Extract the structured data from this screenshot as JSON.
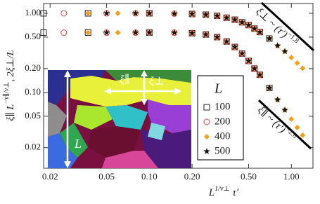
{
  "chart_data": {
    "type": "scatter",
    "x_label": {
      "main": "L",
      "sup": "1/ν⊥",
      "rest": " τ′"
    },
    "y_label": {
      "main": "ξ∥ L",
      "sup": "−ν∥/ν⊥",
      "rest": ", 2ξ⊥/L"
    },
    "log_x": true,
    "log_y": true,
    "xlim": [
      0.018,
      1.42
    ],
    "ylim": [
      0.011,
      1.33
    ],
    "xticks": [
      0.02,
      0.05,
      {
        "value": 0.1,
        "label": "0.10"
      },
      {
        "value": 0.2,
        "label": "0.20"
      },
      {
        "value": 0.5,
        "label": "0.50"
      },
      {
        "value": 1,
        "label": "1.00"
      }
    ],
    "yticks": [
      0.02,
      0.05,
      {
        "value": 0.1,
        "label": "0.10"
      },
      {
        "value": 0.2,
        "label": "0.20"
      },
      {
        "value": 0.5,
        "label": "0.50"
      },
      {
        "value": 1,
        "label": "1.00"
      }
    ],
    "legend_title": "L",
    "legend_position": "lower right",
    "series": [
      {
        "name": "100",
        "color": "#222222",
        "marker": "square",
        "x": [
          0.018,
          0.037,
          0.1,
          0.2,
          0.25,
          0.3,
          0.35,
          0.4,
          0.45,
          0.5,
          0.55,
          0.6,
          0.7
        ],
        "xi_perp": [
          1.0,
          1.0,
          1.0,
          0.98,
          0.96,
          0.93,
          0.88,
          0.83,
          0.77,
          0.71,
          0.64,
          0.58,
          0.48
        ],
        "xi_par": [
          0.57,
          0.57,
          0.57,
          0.56,
          0.54,
          0.5,
          0.44,
          0.375,
          0.31,
          0.25,
          0.2,
          0.167,
          0.114
        ]
      },
      {
        "name": "200",
        "color": "#e8453c",
        "marker": "circle",
        "x": [
          0.025,
          0.05,
          0.08,
          0.1,
          0.15,
          0.2,
          0.25,
          0.3,
          0.35,
          0.4,
          0.45,
          0.5,
          0.55,
          0.6
        ],
        "xi_perp": [
          1.0,
          1.0,
          1.0,
          1.0,
          0.99,
          0.98,
          0.96,
          0.93,
          0.88,
          0.83,
          0.77,
          0.71,
          0.64,
          0.58
        ],
        "xi_par": [
          0.57,
          0.57,
          0.57,
          0.57,
          0.57,
          0.56,
          0.54,
          0.5,
          0.44,
          0.375,
          0.31,
          0.25,
          0.2,
          0.167
        ]
      },
      {
        "name": "400",
        "color": "#f4a11a",
        "marker": "diamond",
        "x": [
          0.037,
          0.06,
          0.08,
          0.1,
          0.15,
          0.2,
          0.25,
          0.3,
          0.35,
          0.4,
          0.45,
          0.5,
          0.55,
          0.6,
          0.7,
          0.8,
          0.9,
          1.0,
          1.1,
          1.2
        ],
        "xi_perp": [
          1.0,
          1.0,
          1.0,
          1.0,
          0.99,
          0.98,
          0.96,
          0.93,
          0.88,
          0.83,
          0.77,
          0.71,
          0.64,
          0.58,
          0.48,
          0.39,
          0.33,
          0.276,
          0.235,
          0.202
        ],
        "xi_par": [
          0.57,
          0.57,
          0.57,
          0.57,
          0.57,
          0.56,
          0.54,
          0.5,
          0.44,
          0.375,
          0.31,
          0.25,
          0.2,
          0.167,
          0.114,
          0.081,
          0.06,
          0.046,
          0.036,
          0.0287
        ]
      },
      {
        "name": "500",
        "color": "#111111",
        "marker": "star",
        "x": [
          0.05,
          0.08,
          0.1,
          0.15,
          0.2,
          0.25,
          0.3,
          0.35,
          0.4,
          0.45,
          0.5,
          0.55,
          0.6,
          0.7,
          0.8,
          0.9
        ],
        "xi_perp": [
          1.0,
          1.0,
          1.0,
          0.99,
          0.98,
          0.96,
          0.93,
          0.88,
          0.83,
          0.77,
          0.71,
          0.64,
          0.58,
          0.48,
          0.39,
          0.33
        ],
        "xi_par": [
          0.57,
          0.57,
          0.57,
          0.57,
          0.56,
          0.54,
          0.5,
          0.44,
          0.375,
          0.31,
          0.25,
          0.2,
          0.167,
          0.114,
          0.081,
          0.06
        ]
      }
    ],
    "annotations": {
      "perp": {
        "main": "ξ⊥ ~ (τ′)",
        "sup": "−1.8"
      },
      "par": {
        "main": "ξ∥ ~ (τ′)",
        "sup": "−2.6"
      }
    },
    "inset_labels": {
      "par": "ξ∥",
      "perp": "ξ⊥",
      "size": "L"
    }
  }
}
